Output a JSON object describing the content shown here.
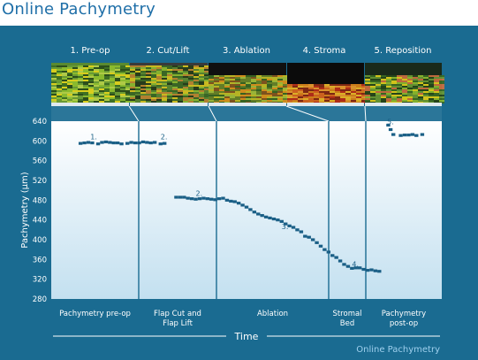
{
  "title": "Online Pachymetry",
  "footer": "Online Pachymetry",
  "stages": [
    {
      "title": "1. Pre-op",
      "phase": [
        "Pachymetry pre-op"
      ]
    },
    {
      "title": "2. Cut/Lift",
      "phase": [
        "Flap Cut and",
        "Flap Lift"
      ]
    },
    {
      "title": "3. Ablation",
      "phase": [
        "Ablation"
      ]
    },
    {
      "title": "4. Stroma",
      "phase": [
        "Stromal",
        "Bed"
      ]
    },
    {
      "title": "5. Reposition",
      "phase": [
        "Pachymetry",
        "post-op"
      ]
    }
  ],
  "colors": {
    "panel": "#1a6b91",
    "plot_top": "#ffffff",
    "plot_bottom": "#c3e0f0",
    "markers": "#1a5f86",
    "title": "#1f6fa8"
  },
  "chart_data": {
    "type": "scatter",
    "title": "",
    "xlabel": "Time",
    "ylabel": "Pachymetry (µm)",
    "ylim": [
      280,
      640
    ],
    "yticks": [
      640,
      600,
      560,
      520,
      480,
      440,
      400,
      360,
      320,
      280
    ],
    "xlim": [
      0,
      100
    ],
    "grid": false,
    "annotations": [
      {
        "text": "1.",
        "x": 10,
        "y": 600
      },
      {
        "text": "2.",
        "x": 28,
        "y": 600
      },
      {
        "text": "2.",
        "x": 37,
        "y": 485
      },
      {
        "text": "3.",
        "x": 59,
        "y": 418
      },
      {
        "text": "4.",
        "x": 77,
        "y": 342
      },
      {
        "text": "5.",
        "x": 86,
        "y": 630
      }
    ],
    "series": [
      {
        "points": [
          [
            7.5,
            595
          ],
          [
            8.5,
            596
          ],
          [
            9.5,
            597
          ],
          [
            10.5,
            596
          ],
          [
            12,
            594
          ],
          [
            13,
            597
          ],
          [
            14,
            598
          ],
          [
            15,
            597
          ],
          [
            16,
            596
          ],
          [
            17,
            596
          ],
          [
            18,
            594
          ],
          [
            19.5,
            595
          ],
          [
            20.5,
            597
          ],
          [
            21.5,
            596
          ],
          [
            22.5,
            596
          ],
          [
            23.5,
            598
          ],
          [
            24.5,
            597
          ],
          [
            25.5,
            596
          ],
          [
            26.5,
            597
          ],
          [
            28,
            594
          ],
          [
            29,
            595
          ],
          [
            32,
            486
          ],
          [
            33,
            486
          ],
          [
            34,
            486
          ],
          [
            35,
            484
          ],
          [
            36,
            483
          ],
          [
            37,
            482
          ],
          [
            38,
            483
          ],
          [
            39,
            484
          ],
          [
            40,
            483
          ],
          [
            41,
            482
          ],
          [
            42,
            481
          ],
          [
            43,
            483
          ],
          [
            44,
            484
          ],
          [
            45,
            480
          ],
          [
            46,
            478
          ],
          [
            47,
            477
          ],
          [
            48,
            474
          ],
          [
            49,
            470
          ],
          [
            50,
            466
          ],
          [
            51,
            461
          ],
          [
            52,
            456
          ],
          [
            53,
            452
          ],
          [
            54,
            449
          ],
          [
            55,
            446
          ],
          [
            56,
            444
          ],
          [
            57,
            442
          ],
          [
            58,
            440
          ],
          [
            59,
            437
          ],
          [
            60,
            432
          ],
          [
            61,
            428
          ],
          [
            62,
            425
          ],
          [
            63,
            420
          ],
          [
            64,
            416
          ],
          [
            65,
            407
          ],
          [
            66,
            405
          ],
          [
            67,
            400
          ],
          [
            68,
            394
          ],
          [
            69,
            387
          ],
          [
            70,
            380
          ],
          [
            71,
            375
          ],
          [
            72,
            368
          ],
          [
            73,
            364
          ],
          [
            74,
            357
          ],
          [
            75,
            350
          ],
          [
            76,
            346
          ],
          [
            77,
            342
          ],
          [
            78,
            343
          ],
          [
            79,
            343
          ],
          [
            80,
            340
          ],
          [
            81,
            338
          ],
          [
            82,
            339
          ],
          [
            83,
            337
          ],
          [
            84,
            336
          ],
          [
            86.3,
            632
          ],
          [
            86.9,
            623
          ],
          [
            87.6,
            613
          ],
          [
            89.5,
            611
          ],
          [
            90.5,
            612
          ],
          [
            91.5,
            612
          ],
          [
            92.5,
            613
          ],
          [
            93.5,
            611
          ],
          [
            95,
            613
          ]
        ]
      }
    ]
  }
}
